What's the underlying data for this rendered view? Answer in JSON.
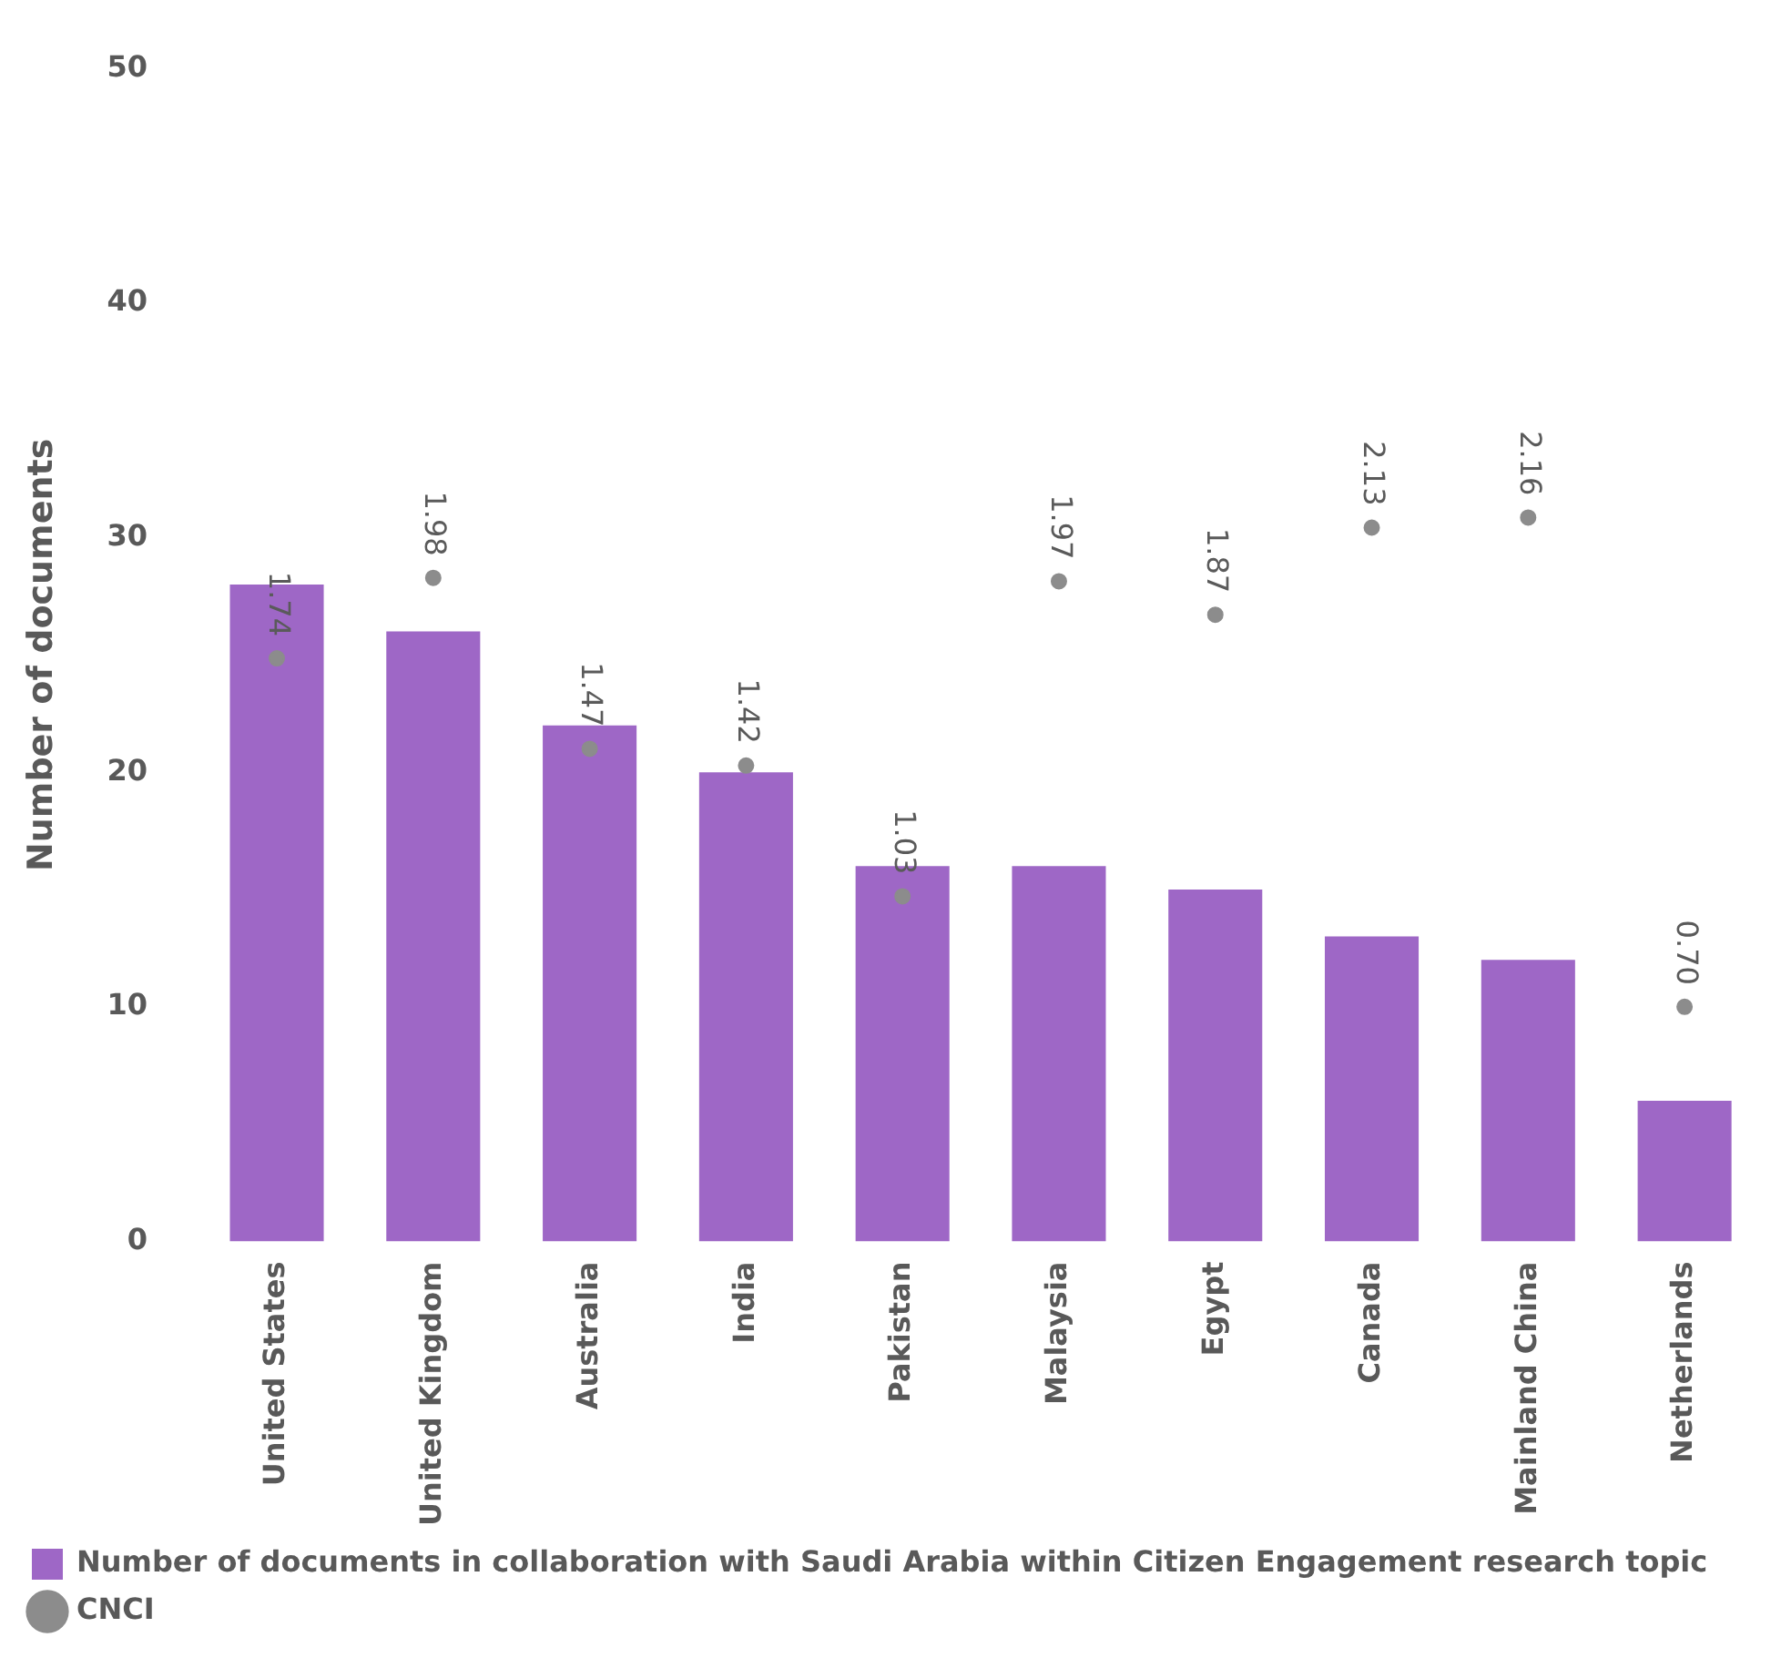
{
  "chart_data": {
    "type": "bar",
    "ylabel": "Number of documents",
    "categories": [
      "United States",
      "United Kingdom",
      "Australia",
      "India",
      "Pakistan",
      "Malaysia",
      "Egypt",
      "Canada",
      "Mainland China",
      "Netherlands"
    ],
    "series": [
      {
        "name": "Number of documents in collaboration with Saudi Arabia within Citizen Engagement research topic",
        "color": "#9e67c6",
        "values": [
          28,
          26,
          22,
          20,
          16,
          16,
          15,
          13,
          12,
          6
        ]
      },
      {
        "name": "CNCI",
        "type": "scatter",
        "axis": "y2",
        "color": "#8c8c8c",
        "marker": "circle",
        "values": [
          1.74,
          1.98,
          1.47,
          1.42,
          1.03,
          1.97,
          1.87,
          2.13,
          2.16,
          0.7
        ],
        "value_labels": [
          "1.74",
          "1.98",
          "1.47",
          "1.42",
          "1.03",
          "1.97",
          "1.87",
          "2.13",
          "2.16",
          "0.70"
        ]
      }
    ],
    "ylim": [
      0,
      50
    ],
    "yticks": [
      0,
      10,
      20,
      30,
      40,
      50
    ],
    "grid": false,
    "legend": "bottom"
  }
}
